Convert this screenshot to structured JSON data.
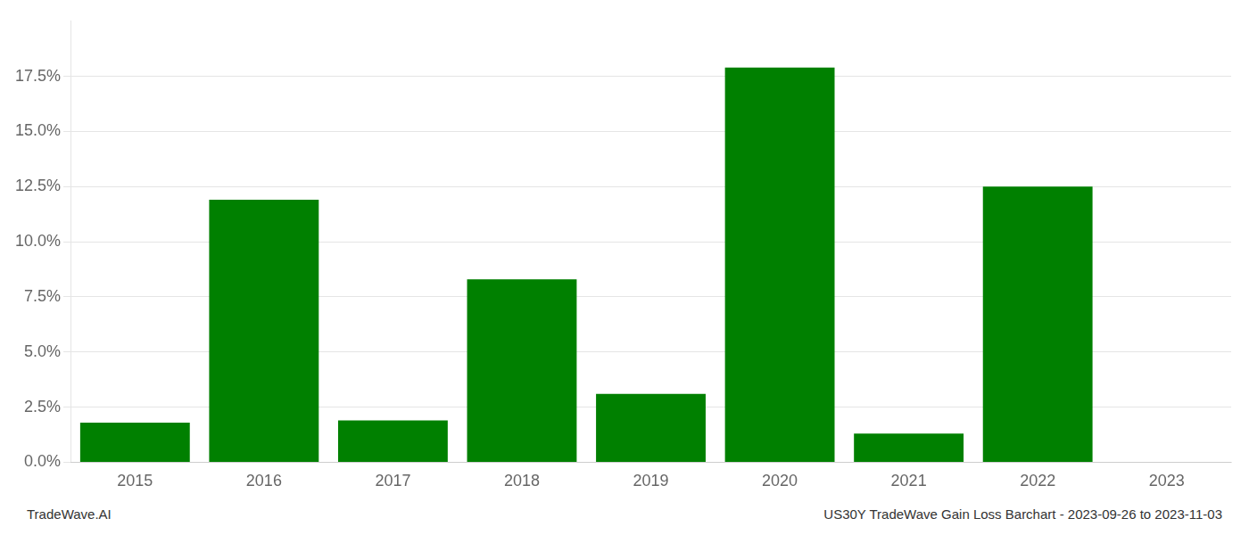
{
  "chart_data": {
    "type": "bar",
    "categories": [
      "2015",
      "2016",
      "2017",
      "2018",
      "2019",
      "2020",
      "2021",
      "2022",
      "2023"
    ],
    "values": [
      0.018,
      0.119,
      0.019,
      0.083,
      0.031,
      0.179,
      0.013,
      0.125,
      0.0
    ],
    "color": "#008000",
    "ylim": [
      0,
      0.2
    ],
    "yticks": [
      {
        "value": 0.0,
        "label": "0.0%"
      },
      {
        "value": 0.025,
        "label": "2.5%"
      },
      {
        "value": 0.05,
        "label": "5.0%"
      },
      {
        "value": 0.075,
        "label": "7.5%"
      },
      {
        "value": 0.1,
        "label": "10.0%"
      },
      {
        "value": 0.125,
        "label": "12.5%"
      },
      {
        "value": 0.15,
        "label": "15.0%"
      },
      {
        "value": 0.175,
        "label": "17.5%"
      }
    ],
    "grid": true,
    "annotations": [
      "TradeWave.AI",
      "US30Y TradeWave Gain Loss Barchart - 2023-09-26 to 2023-11-03"
    ]
  }
}
